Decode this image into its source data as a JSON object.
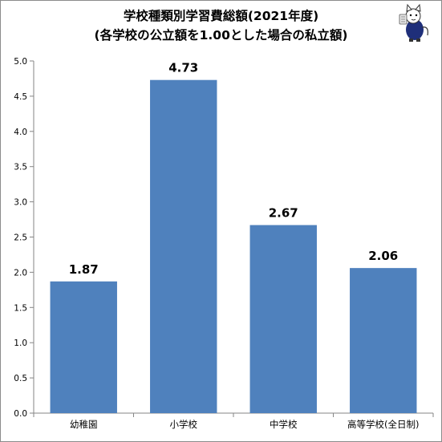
{
  "chart_data": {
    "type": "bar",
    "title": "学校種類別学習費総額(2021年度)",
    "subtitle": "(各学校の公立額を1.00とした場合の私立額)",
    "categories": [
      "幼稚園",
      "小学校",
      "中学校",
      "高等学校(全日制)"
    ],
    "values": [
      1.87,
      4.73,
      2.67,
      2.06
    ],
    "data_labels": [
      "1.87",
      "4.73",
      "2.67",
      "2.06"
    ],
    "y_ticks": [
      "0.0",
      "0.5",
      "1.0",
      "1.5",
      "2.0",
      "2.5",
      "3.0",
      "3.5",
      "4.0",
      "4.5",
      "5.0"
    ],
    "ylim": [
      0,
      5.0
    ],
    "xlabel": "",
    "ylabel": "",
    "grid": false,
    "legend": "none",
    "bar_color": "#4f81bd"
  },
  "mascot": {
    "icon": "cat-mascot-icon"
  }
}
